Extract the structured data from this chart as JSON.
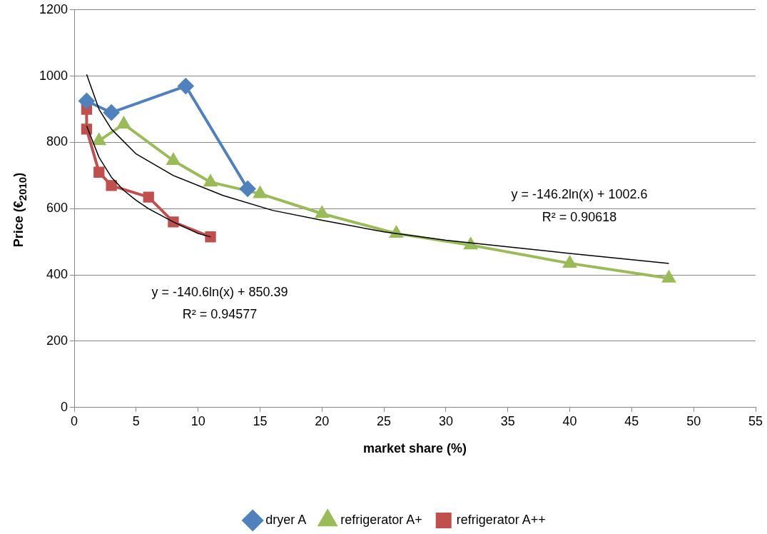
{
  "chart_data": {
    "type": "line",
    "xlabel": "market share (%)",
    "ylabel": "Price (€$_{2010}$)",
    "xlim": [
      0,
      55
    ],
    "xticks": [
      0,
      5,
      10,
      15,
      20,
      25,
      30,
      35,
      40,
      45,
      50,
      55
    ],
    "ylim": [
      0,
      1200
    ],
    "yticks": [
      0,
      200,
      400,
      600,
      800,
      1000,
      1200
    ],
    "grid": "y",
    "legend": "bottom",
    "series": [
      {
        "name": "dryer A",
        "color": "#4f81bd",
        "marker": "diamond",
        "x": [
          1,
          3,
          9,
          14
        ],
        "values": [
          925,
          890,
          970,
          660
        ]
      },
      {
        "name": "refrigerator A+",
        "color": "#9bbb59",
        "marker": "triangle",
        "x": [
          2,
          4,
          8,
          11,
          15,
          20,
          26,
          32,
          40,
          48
        ],
        "values": [
          805,
          855,
          745,
          680,
          645,
          585,
          525,
          490,
          435,
          390
        ]
      },
      {
        "name": "refrigerator A++",
        "color": "#c0504d",
        "marker": "square",
        "x": [
          1,
          1,
          2,
          3,
          6,
          8,
          11
        ],
        "values": [
          900,
          840,
          710,
          670,
          635,
          560,
          515
        ]
      },
      {
        "type": "line",
        "color": "#000000",
        "marker": "none",
        "x": [
          1,
          2,
          3,
          5,
          8,
          12,
          16,
          20,
          25,
          30,
          35,
          40,
          48
        ],
        "values": [
          1005,
          900,
          840,
          765,
          700,
          640,
          595,
          565,
          530,
          505,
          485,
          465,
          435
        ]
      },
      {
        "type": "line",
        "color": "#000000",
        "marker": "none",
        "x": [
          1,
          2,
          3,
          4,
          5,
          6,
          8,
          10,
          11
        ],
        "values": [
          850,
          755,
          695,
          655,
          625,
          600,
          560,
          525,
          515
        ]
      }
    ],
    "annotations": [
      "y = -146.2ln(x) + 1002.6",
      "R² = 0.90618",
      "y = -140.6ln(x) + 850.39",
      "R² = 0.94577"
    ]
  }
}
